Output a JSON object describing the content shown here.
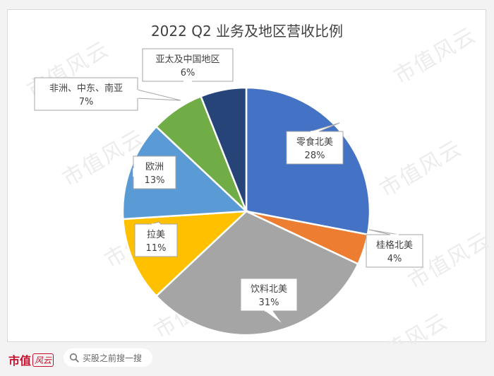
{
  "chart_data": {
    "type": "pie",
    "title": "2022 Q2 业务及地区营收比例",
    "slices": [
      {
        "label": "零食北美",
        "value": 28,
        "value_text": "28%",
        "color": "#4472c4"
      },
      {
        "label": "桂格北美",
        "value": 4,
        "value_text": "4%",
        "color": "#ed7d31"
      },
      {
        "label": "饮料北美",
        "value": 31,
        "value_text": "31%",
        "color": "#a5a5a5"
      },
      {
        "label": "拉美",
        "value": 11,
        "value_text": "11%",
        "color": "#ffc000"
      },
      {
        "label": "欧洲",
        "value": 13,
        "value_text": "13%",
        "color": "#5b9bd5"
      },
      {
        "label": "非洲、中东、南亚",
        "value": 7,
        "value_text": "7%",
        "color": "#70ad47"
      },
      {
        "label": "亚太及中国地区",
        "value": 6,
        "value_text": "6%",
        "color": "#264478"
      }
    ]
  },
  "watermark": "市值风云",
  "footer": {
    "brand": "市值",
    "brand_mark": "风云",
    "search_placeholder": "买股之前搜一搜"
  }
}
